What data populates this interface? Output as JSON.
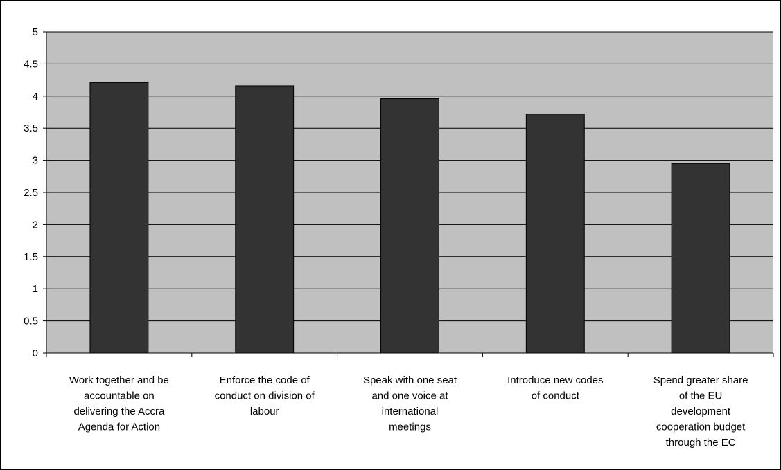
{
  "chart_data": {
    "type": "bar",
    "title": "",
    "xlabel": "",
    "ylabel": "",
    "ylim": [
      0,
      5
    ],
    "yticks": [
      "0",
      "0.5",
      "1",
      "1.5",
      "2",
      "2.5",
      "3",
      "3.5",
      "4",
      "4.5",
      "5"
    ],
    "grid": true,
    "legend": "none",
    "categories": [
      [
        "Work together and be",
        "accountable on",
        "delivering the Accra",
        "Agenda for Action"
      ],
      [
        "Enforce the code of",
        "conduct on division of",
        "labour"
      ],
      [
        "Speak with one seat",
        "and one voice at",
        "international",
        "meetings"
      ],
      [
        "Introduce new codes",
        "of conduct"
      ],
      [
        "Spend greater share",
        "of the EU",
        "development",
        "cooperation budget",
        "through the EC"
      ]
    ],
    "values": [
      4.21,
      4.16,
      3.96,
      3.72,
      2.95
    ],
    "colors": {
      "bar": "#333333",
      "plot_background": "#c0c0c0",
      "gridline": "#000000"
    }
  }
}
